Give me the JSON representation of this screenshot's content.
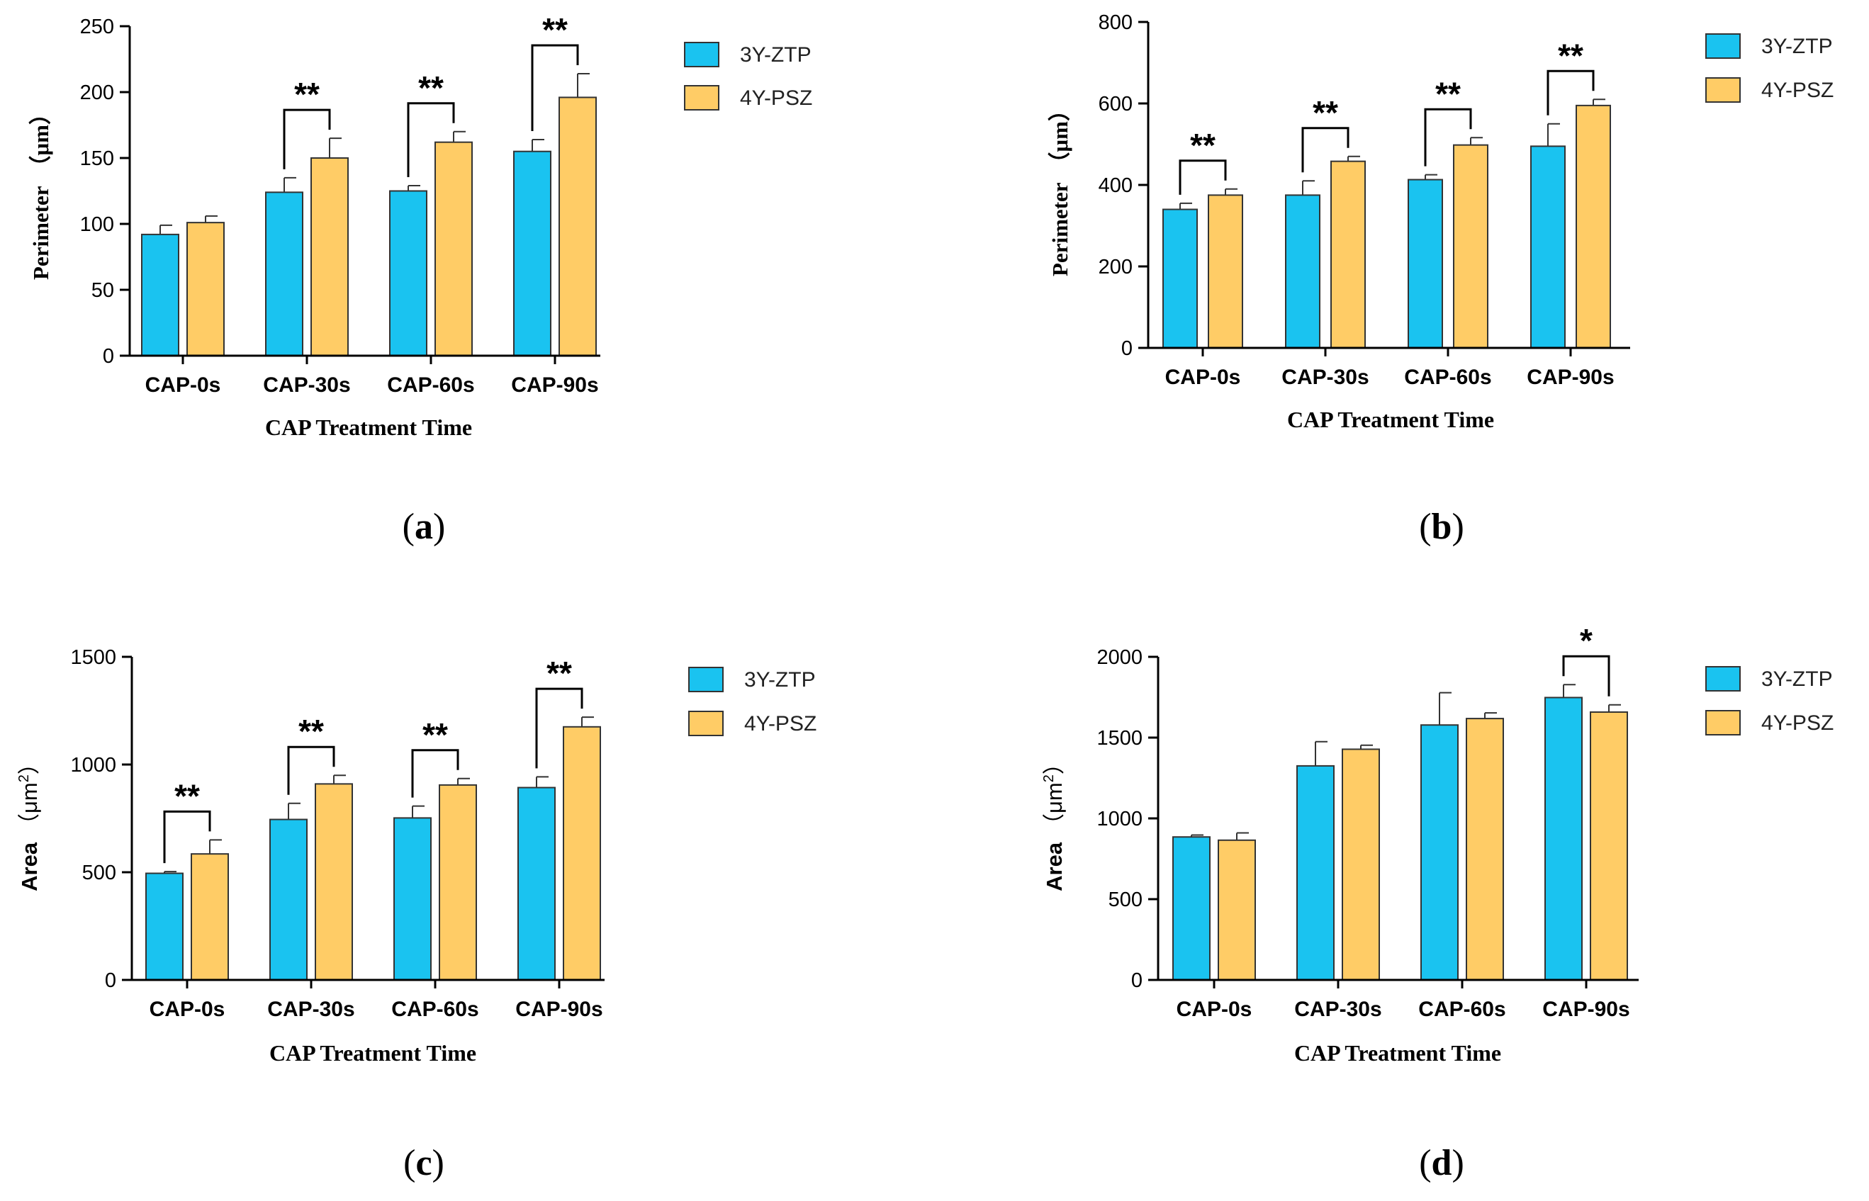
{
  "colors": {
    "series1": "#1AC3F0",
    "series2": "#FFCC66",
    "outline": "#333333",
    "axis": "#000000"
  },
  "chart_data": [
    {
      "id": "a",
      "panel_label": "a",
      "type": "bar",
      "categories": [
        "CAP-0s",
        "CAP-30s",
        "CAP-60s",
        "CAP-90s"
      ],
      "series": [
        {
          "name": "3Y-ZTP",
          "values": [
            92,
            124,
            125,
            155
          ],
          "errors": [
            7,
            11,
            4,
            9
          ]
        },
        {
          "name": "4Y-PSZ",
          "values": [
            101,
            150,
            162,
            196
          ],
          "errors": [
            5,
            15,
            8,
            18
          ]
        }
      ],
      "xlabel": "CAP Treatment Time",
      "ylabel_text": "Perimeter",
      "ylabel_unit": "（μm）",
      "ylim": [
        0,
        250
      ],
      "yticks": [
        "0",
        "50",
        "100",
        "150",
        "200",
        "250"
      ],
      "significance": [
        {
          "category_index": 1,
          "text": "**"
        },
        {
          "category_index": 2,
          "text": "**"
        },
        {
          "category_index": 3,
          "text": "**"
        }
      ],
      "legend": "right"
    },
    {
      "id": "b",
      "panel_label": "b",
      "type": "bar",
      "categories": [
        "CAP-0s",
        "CAP-30s",
        "CAP-60s",
        "CAP-90s"
      ],
      "series": [
        {
          "name": "3Y-ZTP",
          "values": [
            340,
            375,
            413,
            495
          ],
          "errors": [
            15,
            35,
            12,
            55
          ]
        },
        {
          "name": "4Y-PSZ",
          "values": [
            375,
            458,
            498,
            595
          ],
          "errors": [
            15,
            12,
            18,
            15
          ]
        }
      ],
      "xlabel": "CAP Treatment Time",
      "ylabel_text": "Perimeter",
      "ylabel_unit": "（μm）",
      "ylim": [
        0,
        800
      ],
      "yticks": [
        "0",
        "200",
        "400",
        "600",
        "800"
      ],
      "significance": [
        {
          "category_index": 0,
          "text": "**"
        },
        {
          "category_index": 1,
          "text": "**"
        },
        {
          "category_index": 2,
          "text": "**"
        },
        {
          "category_index": 3,
          "text": "**"
        }
      ],
      "legend": "right"
    },
    {
      "id": "c",
      "panel_label": "c",
      "type": "bar",
      "categories": [
        "CAP-0s",
        "CAP-30s",
        "CAP-60s",
        "CAP-90s"
      ],
      "series": [
        {
          "name": "3Y-ZTP",
          "values": [
            495,
            745,
            752,
            893
          ],
          "errors": [
            8,
            75,
            55,
            50
          ]
        },
        {
          "name": "4Y-PSZ",
          "values": [
            585,
            910,
            905,
            1175
          ],
          "errors": [
            65,
            40,
            30,
            45
          ]
        }
      ],
      "xlabel": "CAP Treatment Time",
      "ylabel_text": "Area",
      "ylabel_unit": "（μm",
      "ylabel_sup": "2",
      "ylabel_close": "）",
      "ylim": [
        0,
        1500
      ],
      "yticks": [
        "0",
        "500",
        "1000",
        "1500"
      ],
      "significance": [
        {
          "category_index": 0,
          "text": "**"
        },
        {
          "category_index": 1,
          "text": "**"
        },
        {
          "category_index": 2,
          "text": "**"
        },
        {
          "category_index": 3,
          "text": "**"
        }
      ],
      "legend": "right"
    },
    {
      "id": "d",
      "panel_label": "d",
      "type": "bar",
      "categories": [
        "CAP-0s",
        "CAP-30s",
        "CAP-60s",
        "CAP-90s"
      ],
      "series": [
        {
          "name": "3Y-ZTP",
          "values": [
            885,
            1325,
            1578,
            1748
          ],
          "errors": [
            12,
            150,
            200,
            80
          ]
        },
        {
          "name": "4Y-PSZ",
          "values": [
            865,
            1428,
            1618,
            1658
          ],
          "errors": [
            45,
            25,
            35,
            45
          ]
        }
      ],
      "xlabel": "CAP Treatment Time",
      "ylabel_text": "Area",
      "ylabel_unit": "（μm",
      "ylabel_sup": "2",
      "ylabel_close": "）",
      "ylim": [
        0,
        2000
      ],
      "yticks": [
        "0",
        "500",
        "1000",
        "1500",
        "2000"
      ],
      "significance": [
        {
          "category_index": 3,
          "text": "*"
        }
      ],
      "legend": "right"
    }
  ]
}
